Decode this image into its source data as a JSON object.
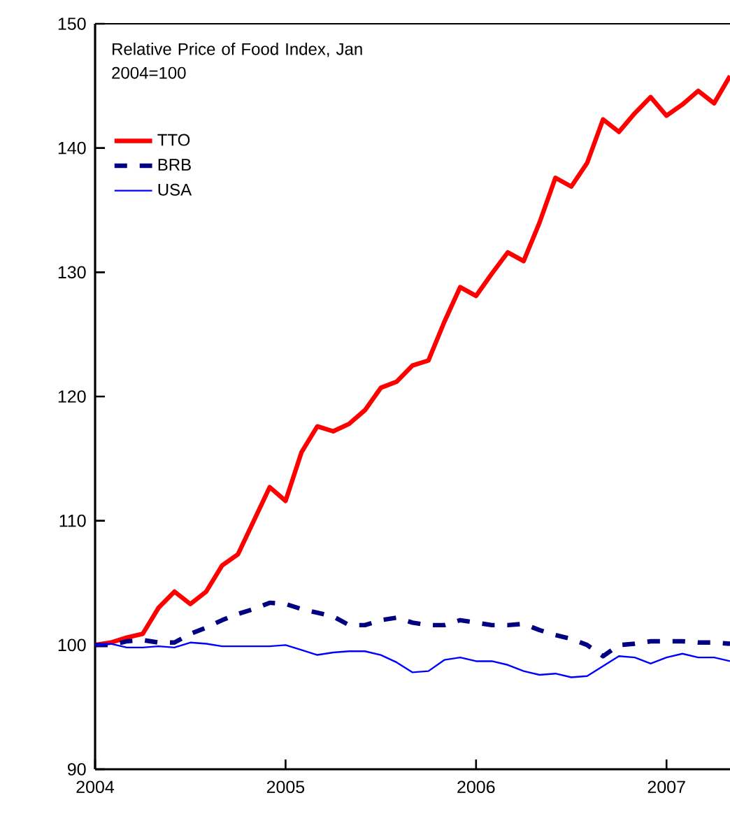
{
  "chart_data": {
    "type": "line",
    "title": "Relative Price of Food Index, Jan 2004=100",
    "x": [
      "2004-01",
      "2004-02",
      "2004-03",
      "2004-04",
      "2004-05",
      "2004-06",
      "2004-07",
      "2004-08",
      "2004-09",
      "2004-10",
      "2004-11",
      "2004-12",
      "2005-01",
      "2005-02",
      "2005-03",
      "2005-04",
      "2005-05",
      "2005-06",
      "2005-07",
      "2005-08",
      "2005-09",
      "2005-10",
      "2005-11",
      "2005-12",
      "2006-01",
      "2006-02",
      "2006-03",
      "2006-04",
      "2006-05",
      "2006-06",
      "2006-07",
      "2006-08",
      "2006-09",
      "2006-10",
      "2006-11",
      "2006-12",
      "2007-01",
      "2007-02",
      "2007-03",
      "2007-04",
      "2007-05"
    ],
    "series": [
      {
        "name": "TTO",
        "color": "#ff0000",
        "line_style": "solid",
        "values": [
          100,
          100.2,
          100.6,
          100.9,
          103,
          104.3,
          103.3,
          104.3,
          106.4,
          107.3,
          110,
          112.7,
          111.6,
          115.5,
          117.6,
          117.2,
          117.8,
          118.9,
          120.7,
          121.2,
          122.5,
          122.9,
          126,
          128.8,
          128.1,
          129.9,
          131.6,
          130.9,
          134,
          137.6,
          136.9,
          138.8,
          142.3,
          141.3,
          142.8,
          144.1,
          142.6,
          143.5,
          144.6,
          143.6,
          145.8
        ]
      },
      {
        "name": "BRB",
        "color": "#000080",
        "line_style": "dashed",
        "values": [
          100,
          100,
          100.3,
          100.4,
          100.2,
          100.2,
          100.9,
          101.4,
          102,
          102.5,
          102.9,
          103.4,
          103.3,
          102.9,
          102.6,
          102.3,
          101.6,
          101.6,
          102,
          102.2,
          101.8,
          101.6,
          101.6,
          102,
          101.8,
          101.6,
          101.6,
          101.7,
          101.2,
          100.8,
          100.5,
          100,
          99.1,
          100,
          100.1,
          100.3,
          100.3,
          100.3,
          100.2,
          100.2,
          100.1
        ]
      },
      {
        "name": "USA",
        "color": "#0000ff",
        "line_style": "solid",
        "values": [
          100,
          100.1,
          99.8,
          99.8,
          99.9,
          99.8,
          100.2,
          100.1,
          99.9,
          99.9,
          99.9,
          99.9,
          100,
          99.6,
          99.2,
          99.4,
          99.5,
          99.5,
          99.2,
          98.6,
          97.8,
          97.9,
          98.8,
          99,
          98.7,
          98.7,
          98.4,
          97.9,
          97.6,
          97.7,
          97.4,
          97.5,
          98.3,
          99.1,
          99,
          98.5,
          99,
          99.3,
          99,
          99,
          98.7
        ]
      }
    ],
    "xlim": [
      "2004-01",
      "2007-05"
    ],
    "xticks": [
      "2004",
      "2005",
      "2006",
      "2007"
    ],
    "ylim": [
      90,
      150
    ],
    "yticks": [
      90,
      100,
      110,
      120,
      130,
      140,
      150
    ],
    "grid": false,
    "legend": "top left",
    "marker": "none"
  }
}
